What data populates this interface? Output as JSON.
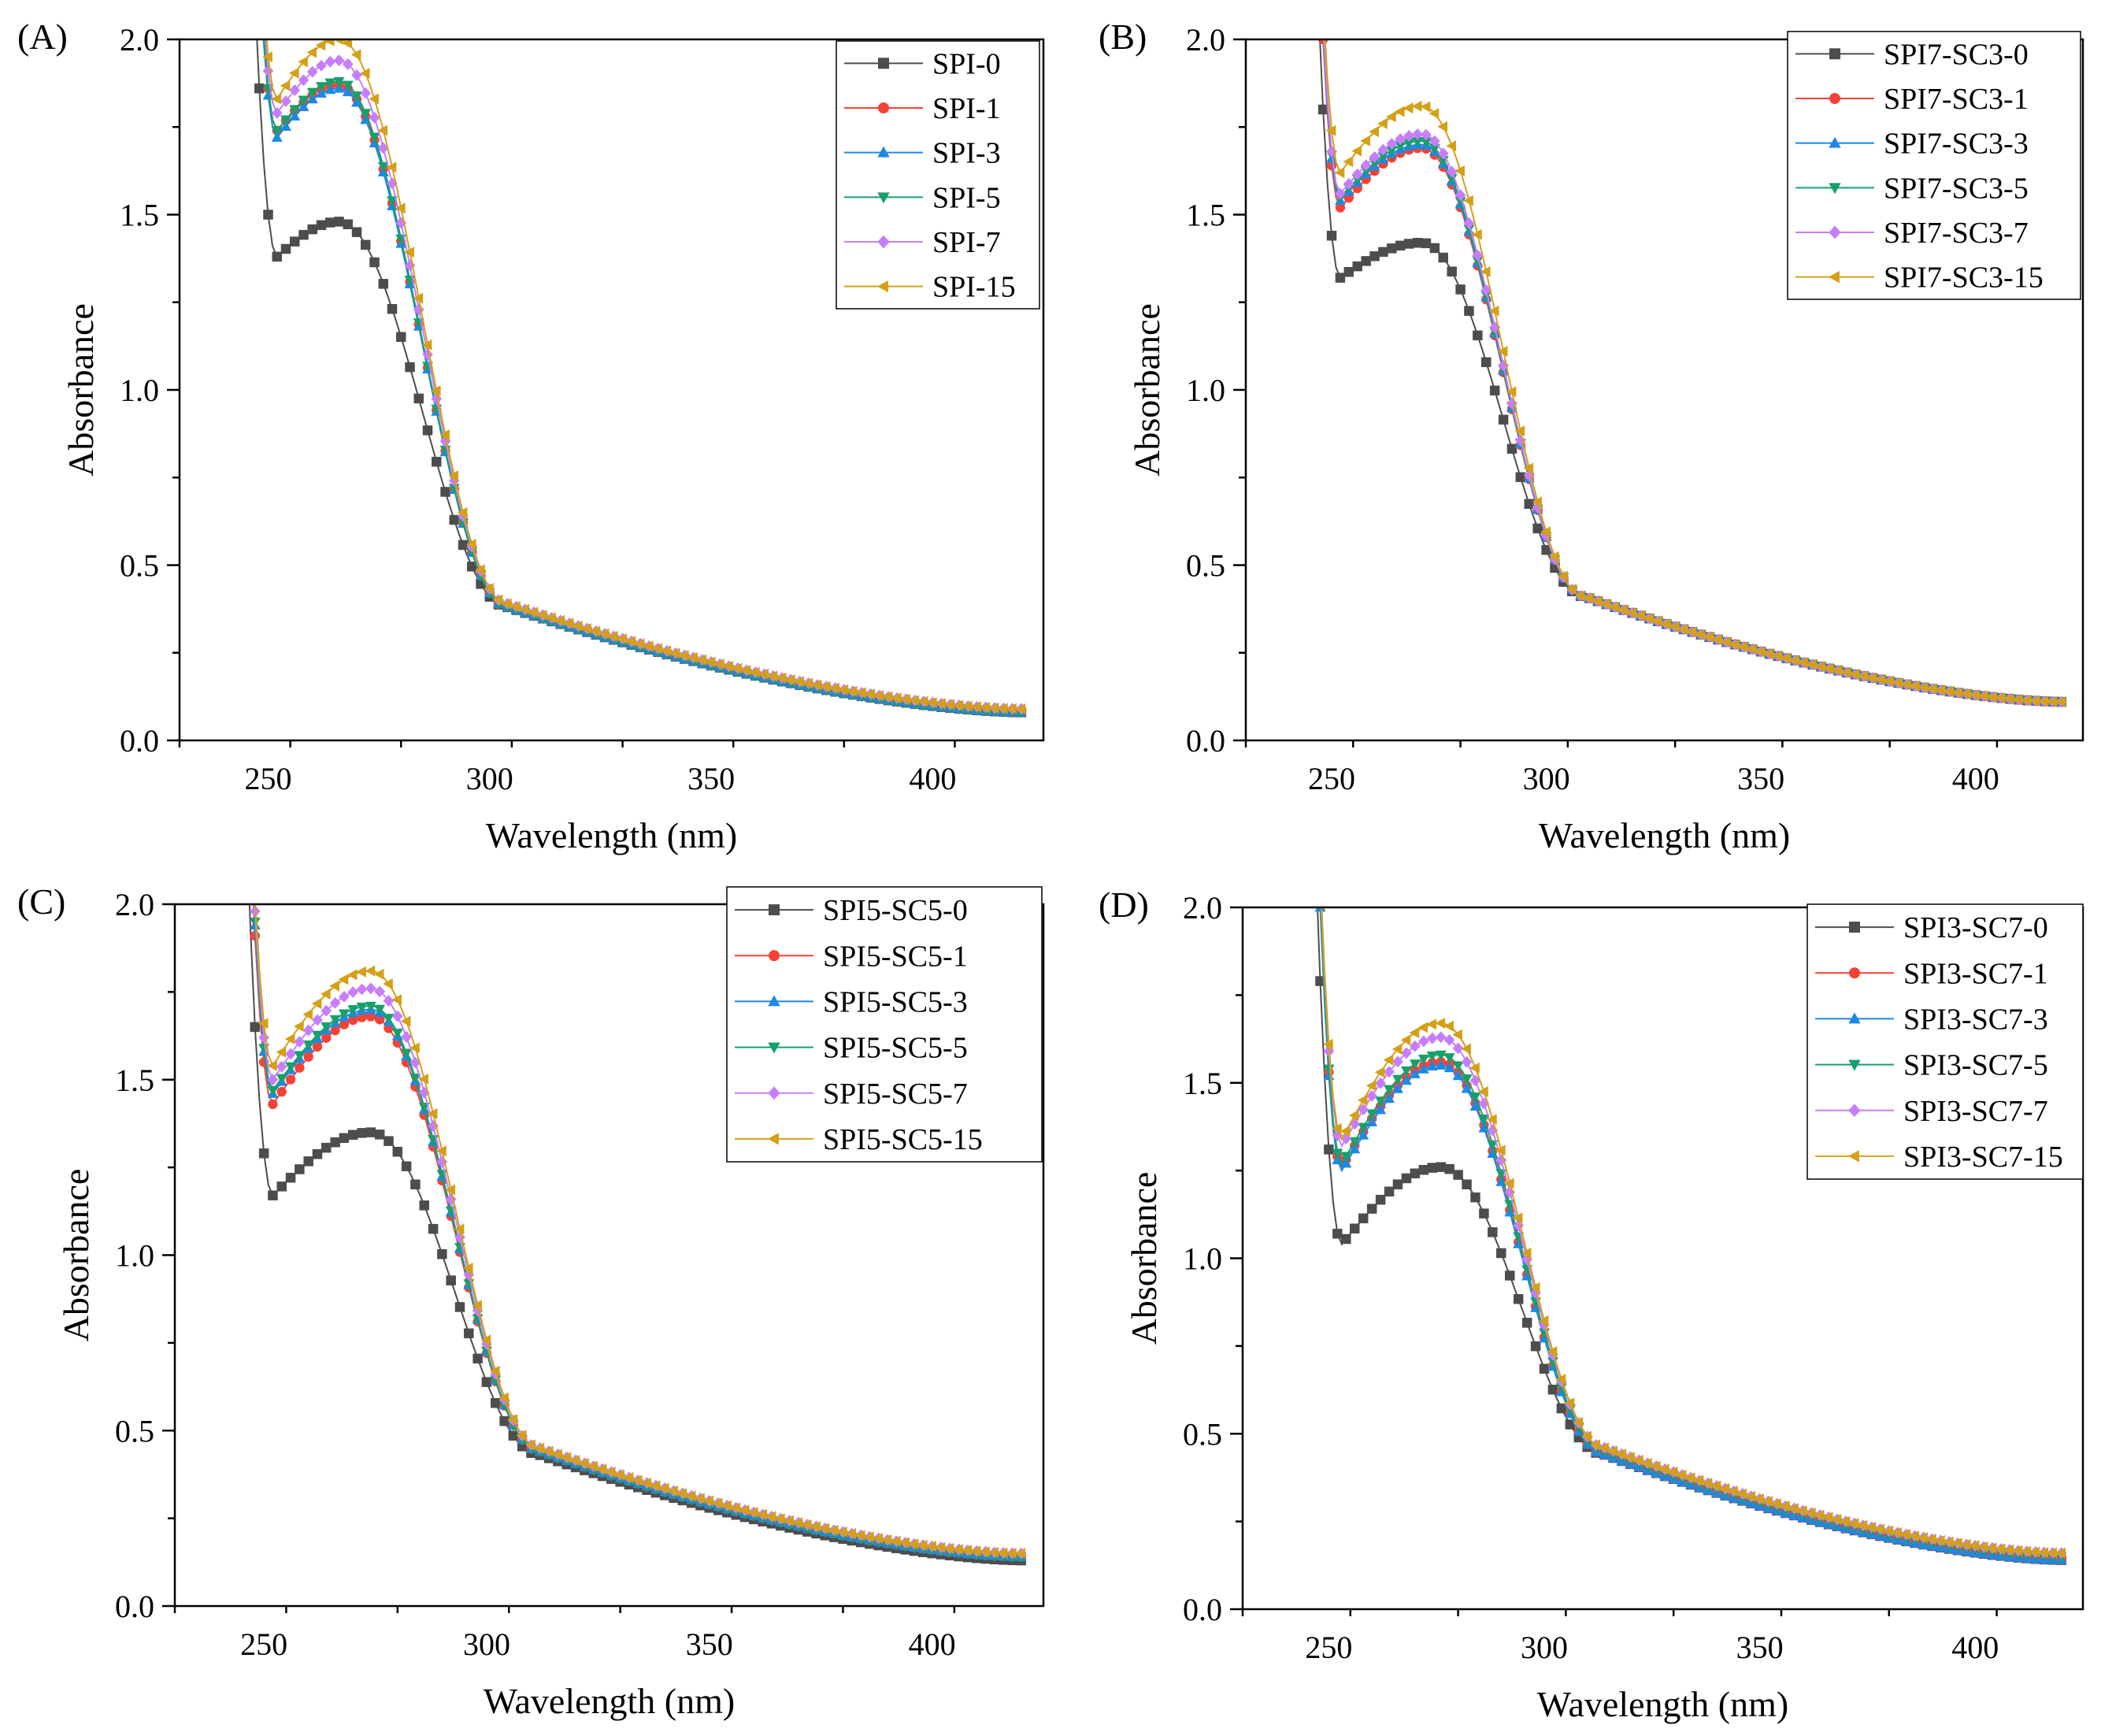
{
  "figure": {
    "panels_layout": "2x2 grid",
    "tick_color": "#000000"
  },
  "chart_data": [
    {
      "type": "line",
      "panel_label": "(A)",
      "xlabel": "Wavelength (nm)",
      "ylabel": "Absorbance",
      "xlim": [
        230,
        425
      ],
      "ylim": [
        0.0,
        2.0
      ],
      "xticks": [
        250,
        300,
        350,
        400
      ],
      "yticks": [
        0.0,
        0.5,
        1.0,
        1.5,
        2.0
      ],
      "ytick_labels": [
        "0.0",
        "0.5",
        "1.0",
        "1.5",
        "2.0"
      ],
      "legend": "top-right",
      "grid": false,
      "params": {
        "min_wl": 252,
        "max_wl": 266
      },
      "series": [
        {
          "name": "SPI-0",
          "color": "#4d4d4d",
          "marker": "square",
          "min": 1.38,
          "max": 1.48,
          "tail": 0.08
        },
        {
          "name": "SPI-1",
          "color": "#f44336",
          "marker": "circle",
          "min": 1.74,
          "max": 1.87,
          "tail": 0.08
        },
        {
          "name": "SPI-3",
          "color": "#1e88e5",
          "marker": "triangle-up",
          "min": 1.72,
          "max": 1.86,
          "tail": 0.08
        },
        {
          "name": "SPI-5",
          "color": "#17a06a",
          "marker": "triangle-down",
          "min": 1.74,
          "max": 1.88,
          "tail": 0.08
        },
        {
          "name": "SPI-7",
          "color": "#c77dff",
          "marker": "diamond",
          "min": 1.79,
          "max": 1.94,
          "tail": 0.09
        },
        {
          "name": "SPI-15",
          "color": "#d4a017",
          "marker": "triangle-left",
          "min": 1.83,
          "max": 2.0,
          "tail": 0.09
        }
      ]
    },
    {
      "type": "line",
      "panel_label": "(B)",
      "xlabel": "Wavelength (nm)",
      "ylabel": "Absorbance",
      "xlim": [
        230,
        425
      ],
      "ylim": [
        0.0,
        2.0
      ],
      "xticks": [
        250,
        300,
        350,
        400
      ],
      "yticks": [
        0.0,
        0.5,
        1.0,
        1.5,
        2.0
      ],
      "ytick_labels": [
        "0.0",
        "0.5",
        "1.0",
        "1.5",
        "2.0"
      ],
      "legend": "top-right",
      "grid": false,
      "params": {
        "min_wl": 252,
        "max_wl": 271
      },
      "series": [
        {
          "name": "SPI7-SC3-0",
          "color": "#4d4d4d",
          "marker": "square",
          "min": 1.32,
          "max": 1.42,
          "tail": 0.11
        },
        {
          "name": "SPI7-SC3-1",
          "color": "#f44336",
          "marker": "circle",
          "min": 1.52,
          "max": 1.69,
          "tail": 0.11
        },
        {
          "name": "SPI7-SC3-3",
          "color": "#1e88e5",
          "marker": "triangle-up",
          "min": 1.54,
          "max": 1.7,
          "tail": 0.11
        },
        {
          "name": "SPI7-SC3-5",
          "color": "#17a06a",
          "marker": "triangle-down",
          "min": 1.55,
          "max": 1.71,
          "tail": 0.11
        },
        {
          "name": "SPI7-SC3-7",
          "color": "#c77dff",
          "marker": "diamond",
          "min": 1.56,
          "max": 1.73,
          "tail": 0.11
        },
        {
          "name": "SPI7-SC3-15",
          "color": "#d4a017",
          "marker": "triangle-left",
          "min": 1.62,
          "max": 1.81,
          "tail": 0.11
        }
      ]
    },
    {
      "type": "line",
      "panel_label": "(C)",
      "xlabel": "Wavelength (nm)",
      "ylabel": "Absorbance",
      "xlim": [
        230,
        425
      ],
      "ylim": [
        0.0,
        2.0
      ],
      "xticks": [
        250,
        300,
        350,
        400
      ],
      "yticks": [
        0.0,
        0.5,
        1.0,
        1.5,
        2.0
      ],
      "ytick_labels": [
        "0.0",
        "0.5",
        "1.0",
        "1.5",
        "2.0"
      ],
      "legend": "top-right",
      "grid": false,
      "params": {
        "min_wl": 252,
        "max_wl": 274
      },
      "series": [
        {
          "name": "SPI5-SC5-0",
          "color": "#4d4d4d",
          "marker": "square",
          "min": 1.17,
          "max": 1.35,
          "tail": 0.13
        },
        {
          "name": "SPI5-SC5-1",
          "color": "#f44336",
          "marker": "circle",
          "min": 1.43,
          "max": 1.68,
          "tail": 0.14
        },
        {
          "name": "SPI5-SC5-3",
          "color": "#1e88e5",
          "marker": "triangle-up",
          "min": 1.46,
          "max": 1.7,
          "tail": 0.14
        },
        {
          "name": "SPI5-SC5-5",
          "color": "#17a06a",
          "marker": "triangle-down",
          "min": 1.47,
          "max": 1.71,
          "tail": 0.14
        },
        {
          "name": "SPI5-SC5-7",
          "color": "#c77dff",
          "marker": "diamond",
          "min": 1.5,
          "max": 1.76,
          "tail": 0.15
        },
        {
          "name": "SPI5-SC5-15",
          "color": "#d4a017",
          "marker": "triangle-left",
          "min": 1.54,
          "max": 1.81,
          "tail": 0.15
        }
      ]
    },
    {
      "type": "line",
      "panel_label": "(D)",
      "xlabel": "Wavelength (nm)",
      "ylabel": "Absorbance",
      "xlim": [
        230,
        425
      ],
      "ylim": [
        0.0,
        2.0
      ],
      "xticks": [
        250,
        300,
        350,
        400
      ],
      "yticks": [
        0.0,
        0.5,
        1.0,
        1.5,
        2.0
      ],
      "ytick_labels": [
        "0.0",
        "0.5",
        "1.0",
        "1.5",
        "2.0"
      ],
      "legend": "top-right",
      "grid": false,
      "params": {
        "min_wl": 253,
        "max_wl": 276
      },
      "series": [
        {
          "name": "SPI3-SC7-0",
          "color": "#4d4d4d",
          "marker": "square",
          "min": 1.04,
          "max": 1.26,
          "tail": 0.14
        },
        {
          "name": "SPI3-SC7-1",
          "color": "#f44336",
          "marker": "circle",
          "min": 1.26,
          "max": 1.56,
          "tail": 0.14
        },
        {
          "name": "SPI3-SC7-3",
          "color": "#1e88e5",
          "marker": "triangle-up",
          "min": 1.25,
          "max": 1.55,
          "tail": 0.14
        },
        {
          "name": "SPI3-SC7-5",
          "color": "#17a06a",
          "marker": "triangle-down",
          "min": 1.27,
          "max": 1.58,
          "tail": 0.15
        },
        {
          "name": "SPI3-SC7-7",
          "color": "#c77dff",
          "marker": "diamond",
          "min": 1.32,
          "max": 1.63,
          "tail": 0.16
        },
        {
          "name": "SPI3-SC7-15",
          "color": "#d4a017",
          "marker": "triangle-left",
          "min": 1.34,
          "max": 1.67,
          "tail": 0.16
        }
      ]
    }
  ]
}
